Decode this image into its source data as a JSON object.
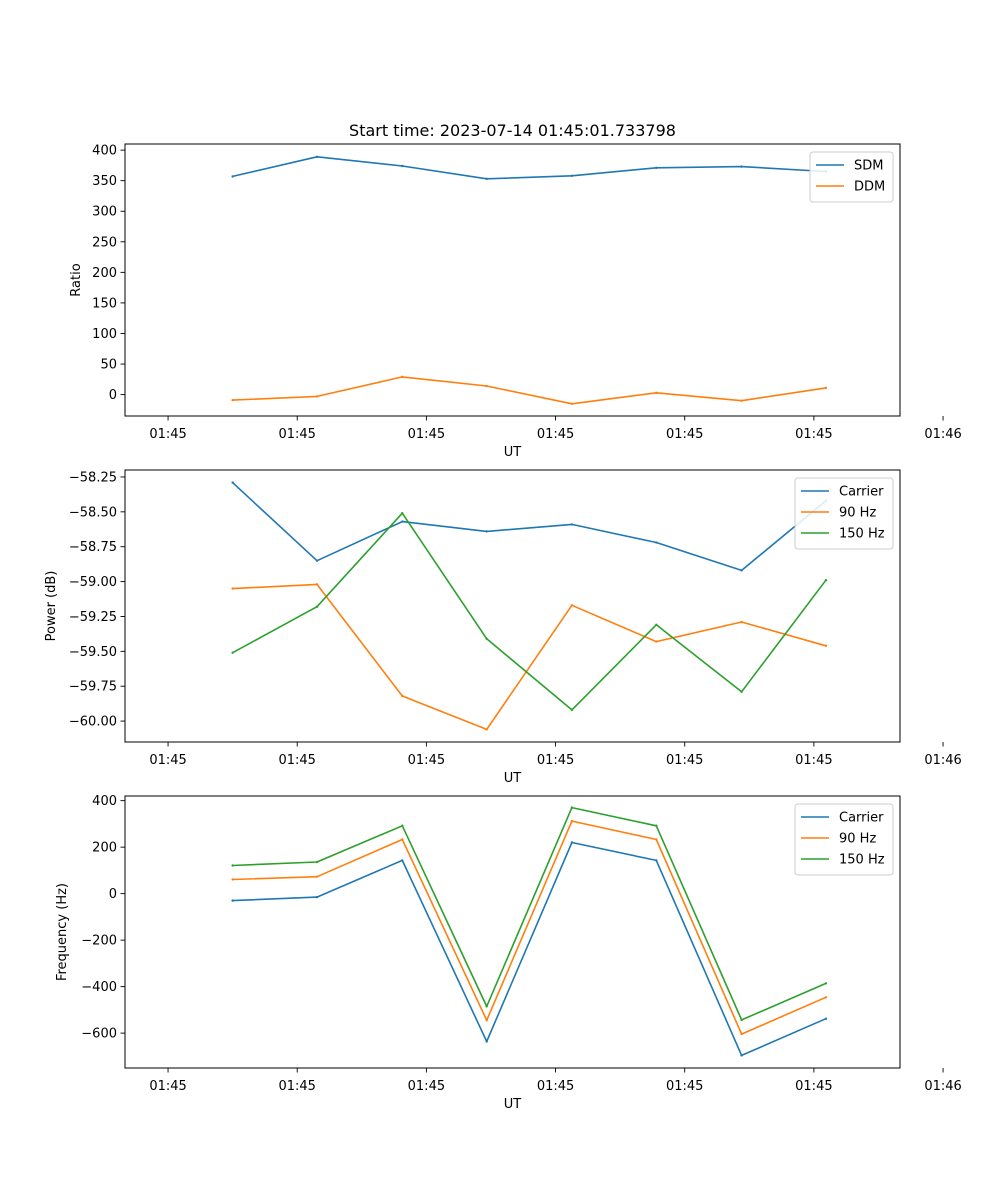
{
  "figure_title": "Start time: 2023-07-14 01:45:01.733798",
  "chart_data": [
    {
      "type": "line",
      "title": "Start time: 2023-07-14 01:45:01.733798",
      "xlabel": "UT",
      "ylabel": "Ratio",
      "xlim": [
        -0.5,
        8.5
      ],
      "ylim": [
        -35,
        410
      ],
      "x_ticks": [
        0,
        1.5,
        3,
        4.5,
        6,
        7.5,
        9
      ],
      "x_tick_labels": [
        "01:45",
        "01:45",
        "01:45",
        "01:45",
        "01:45",
        "01:45",
        "01:46"
      ],
      "y_ticks": [
        0,
        50,
        100,
        150,
        200,
        250,
        300,
        350,
        400
      ],
      "y_tick_labels": [
        "0",
        "50",
        "100",
        "150",
        "200",
        "250",
        "300",
        "350",
        "400"
      ],
      "legend_position": "top-right",
      "x": [
        0.75,
        1.73,
        2.72,
        3.7,
        4.69,
        5.67,
        6.66,
        7.64
      ],
      "series": [
        {
          "name": "SDM",
          "color": "#1f77b4",
          "values": [
            357,
            389,
            374,
            353,
            358,
            371,
            373,
            365
          ]
        },
        {
          "name": "DDM",
          "color": "#ff7f0e",
          "values": [
            -9,
            -3,
            29,
            14,
            -15,
            3,
            -10,
            11
          ]
        }
      ]
    },
    {
      "type": "line",
      "title": "",
      "xlabel": "UT",
      "ylabel": "Power (dB)",
      "xlim": [
        -0.5,
        8.5
      ],
      "ylim": [
        -60.15,
        -58.2
      ],
      "x_ticks": [
        0,
        1.5,
        3,
        4.5,
        6,
        7.5,
        9
      ],
      "x_tick_labels": [
        "01:45",
        "01:45",
        "01:45",
        "01:45",
        "01:45",
        "01:45",
        "01:46"
      ],
      "y_ticks": [
        -58.25,
        -58.5,
        -58.75,
        -59.0,
        -59.25,
        -59.5,
        -59.75,
        -60.0
      ],
      "y_tick_labels": [
        "−58.25",
        "−58.50",
        "−58.75",
        "−59.00",
        "−59.25",
        "−59.50",
        "−59.75",
        "−60.00"
      ],
      "legend_position": "top-right",
      "x": [
        0.75,
        1.73,
        2.72,
        3.7,
        4.69,
        5.67,
        6.66,
        7.64
      ],
      "series": [
        {
          "name": "Carrier",
          "color": "#1f77b4",
          "values": [
            -58.29,
            -58.85,
            -58.57,
            -58.64,
            -58.59,
            -58.72,
            -58.92,
            -58.42
          ]
        },
        {
          "name": "90 Hz",
          "color": "#ff7f0e",
          "values": [
            -59.05,
            -59.02,
            -59.82,
            -60.06,
            -59.17,
            -59.43,
            -59.29,
            -59.46
          ]
        },
        {
          "name": "150 Hz",
          "color": "#2ca02c",
          "values": [
            -59.51,
            -59.18,
            -58.51,
            -59.41,
            -59.92,
            -59.31,
            -59.79,
            -58.99
          ]
        }
      ]
    },
    {
      "type": "line",
      "title": "",
      "xlabel": "UT",
      "ylabel": "Frequency (Hz)",
      "xlim": [
        -0.5,
        8.5
      ],
      "ylim": [
        -750,
        420
      ],
      "x_ticks": [
        0,
        1.5,
        3,
        4.5,
        6,
        7.5,
        9
      ],
      "x_tick_labels": [
        "01:45",
        "01:45",
        "01:45",
        "01:45",
        "01:45",
        "01:45",
        "01:46"
      ],
      "y_ticks": [
        -600,
        -400,
        -200,
        0,
        200,
        400
      ],
      "y_tick_labels": [
        "−600",
        "−400",
        "−200",
        "0",
        "200",
        "400"
      ],
      "legend_position": "top-right",
      "x": [
        0.75,
        1.73,
        2.72,
        3.7,
        4.69,
        5.67,
        6.66,
        7.64
      ],
      "series": [
        {
          "name": "Carrier",
          "color": "#1f77b4",
          "values": [
            -30,
            -15,
            143,
            -636,
            220,
            143,
            -696,
            -538
          ]
        },
        {
          "name": "90 Hz",
          "color": "#ff7f0e",
          "values": [
            61,
            73,
            233,
            -545,
            312,
            233,
            -604,
            -446
          ]
        },
        {
          "name": "150 Hz",
          "color": "#2ca02c",
          "values": [
            121,
            136,
            292,
            -485,
            370,
            292,
            -543,
            -386
          ]
        }
      ]
    }
  ]
}
